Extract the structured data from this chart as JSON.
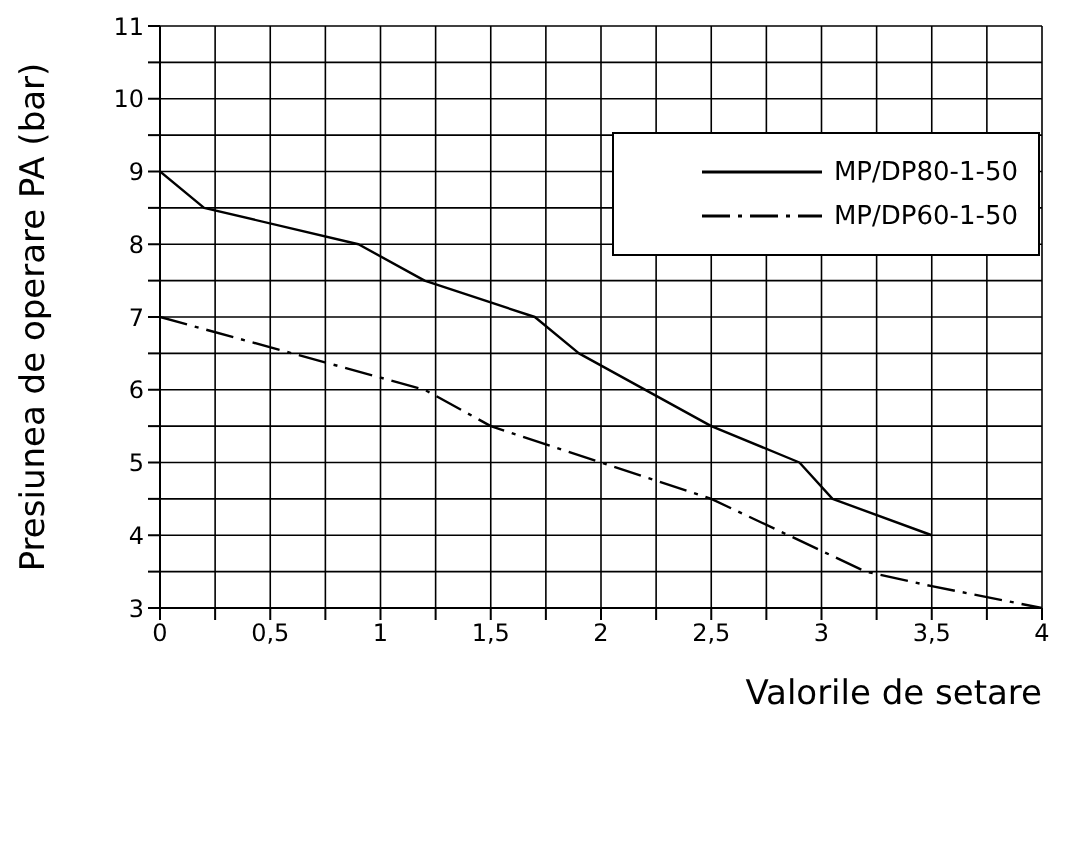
{
  "chart_data": {
    "type": "line",
    "xlabel": "Valorile de setare",
    "ylabel": "Presiunea de operare PA (bar)",
    "xlim": [
      0,
      4
    ],
    "ylim": [
      3,
      11
    ],
    "xticks": [
      0,
      {
        "value": 0.25,
        "label": null
      },
      {
        "value": 0.5,
        "label": "0,5"
      },
      {
        "value": 0.75,
        "label": null
      },
      1,
      {
        "value": 1.25,
        "label": null
      },
      {
        "value": 1.5,
        "label": "1,5"
      },
      {
        "value": 1.75,
        "label": null
      },
      2,
      {
        "value": 2.25,
        "label": null
      },
      {
        "value": 2.5,
        "label": "2,5"
      },
      {
        "value": 2.75,
        "label": null
      },
      3,
      {
        "value": 3.25,
        "label": null
      },
      {
        "value": 3.5,
        "label": "3,5"
      },
      {
        "value": 3.75,
        "label": null
      },
      4
    ],
    "yticks": [
      3,
      {
        "value": 3.5,
        "label": null
      },
      4,
      {
        "value": 4.5,
        "label": null
      },
      5,
      {
        "value": 5.5,
        "label": null
      },
      6,
      {
        "value": 6.5,
        "label": null
      },
      7,
      {
        "value": 7.5,
        "label": null
      },
      8,
      {
        "value": 8.5,
        "label": null
      },
      9,
      {
        "value": 9.5,
        "label": null
      },
      10,
      {
        "value": 10.5,
        "label": null
      },
      11
    ],
    "grid": true,
    "legend": "top right",
    "marker": "none",
    "series": [
      {
        "name": "MP/DP80-1-50",
        "color": "#000000",
        "line_style": "solid",
        "x": [
          0,
          0.2,
          0.9,
          1.2,
          1.7,
          1.9,
          2.5,
          2.9,
          3.05,
          3.5
        ],
        "values": [
          9,
          8.5,
          8,
          7.5,
          7,
          6.5,
          5.5,
          5,
          4.5,
          4
        ]
      },
      {
        "name": "MP/DP60-1-50",
        "color": "#000000",
        "line_style": "dashed",
        "x": [
          0,
          1.2,
          1.5,
          2.5,
          3.2,
          3.5,
          4
        ],
        "values": [
          7,
          6,
          5.5,
          4.5,
          3.5,
          3.3,
          3
        ]
      }
    ]
  }
}
